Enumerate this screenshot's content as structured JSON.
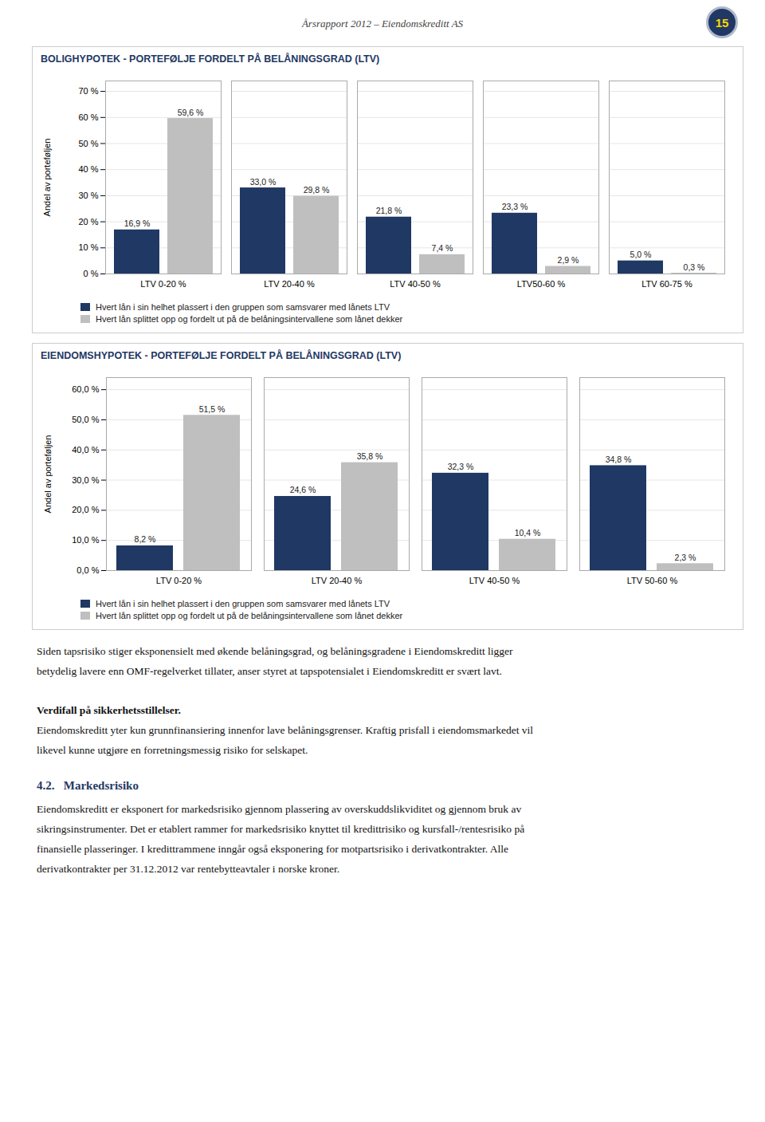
{
  "page_title": "Årsrapport 2012 – Eiendomskreditt AS",
  "page_number": "15",
  "chart_data": [
    {
      "type": "bar",
      "title": "BOLIGHYPOTEK - PORTEFØLJE FORDELT PÅ BELÅNINGSGRAD (LTV)",
      "categories": [
        "LTV 0-20 %",
        "LTV 20-40 %",
        "LTV 40-50 %",
        "LTV50-60 %",
        "LTV 60-75 %"
      ],
      "series": [
        {
          "name": "Hvert lån i sin helhet plassert i den gruppen som samsvarer med lånets LTV",
          "color": "#1F3864",
          "values": [
            16.9,
            33.0,
            21.8,
            23.3,
            5.0
          ],
          "value_labels": [
            "16,9 %",
            "33,0 %",
            "21,8 %",
            "23,3 %",
            "5,0 %"
          ]
        },
        {
          "name": "Hvert lån splittet opp og fordelt ut på de belåningsintervallene som lånet dekker",
          "color": "#BFBFBF",
          "values": [
            59.6,
            29.8,
            7.4,
            2.9,
            0.3
          ],
          "value_labels": [
            "59,6 %",
            "29,8 %",
            "7,4 %",
            "2,9 %",
            "0,3 %"
          ]
        }
      ],
      "ylabel": "Andel av porteføljen",
      "ylim": [
        0,
        74
      ],
      "yticks": [
        {
          "value": 0,
          "label": "0 %"
        },
        {
          "value": 10,
          "label": "10 %"
        },
        {
          "value": 20,
          "label": "20 %"
        },
        {
          "value": 30,
          "label": "30 %"
        },
        {
          "value": 40,
          "label": "40 %"
        },
        {
          "value": 50,
          "label": "50 %"
        },
        {
          "value": 60,
          "label": "60 %"
        },
        {
          "value": 70,
          "label": "70 %"
        }
      ],
      "grid": true,
      "data_labels": true
    },
    {
      "type": "bar",
      "title": "EIENDOMSHYPOTEK - PORTEFØLJE FORDELT PÅ BELÅNINGSGRAD (LTV)",
      "categories": [
        "LTV 0-20 %",
        "LTV 20-40 %",
        "LTV 40-50 %",
        "LTV 50-60 %"
      ],
      "series": [
        {
          "name": "Hvert lån i sin helhet plassert i den gruppen som samsvarer med lånets LTV",
          "color": "#1F3864",
          "values": [
            8.2,
            24.6,
            32.3,
            34.8
          ],
          "value_labels": [
            "8,2 %",
            "24,6 %",
            "32,3 %",
            "34,8 %"
          ]
        },
        {
          "name": "Hvert lån splittet opp og fordelt ut på de belåningsintervallene som lånet dekker",
          "color": "#BFBFBF",
          "values": [
            51.5,
            35.8,
            10.4,
            2.3
          ],
          "value_labels": [
            "51,5 %",
            "35,8 %",
            "10,4 %",
            "2,3 %"
          ]
        }
      ],
      "ylabel": "Andel av porteføljen",
      "ylim": [
        0,
        64
      ],
      "yticks": [
        {
          "value": 0.0,
          "label": "0,0 %"
        },
        {
          "value": 10.0,
          "label": "10,0 %"
        },
        {
          "value": 20.0,
          "label": "20,0 %"
        },
        {
          "value": 30.0,
          "label": "30,0 %"
        },
        {
          "value": 40.0,
          "label": "40,0 %"
        },
        {
          "value": 50.0,
          "label": "50,0 %"
        },
        {
          "value": 60.0,
          "label": "60,0 %"
        }
      ],
      "grid": true,
      "data_labels": true
    }
  ],
  "paragraphs": [
    {
      "lines": [
        "Siden tapsrisiko stiger eksponensielt med økende belåningsgrad, og belåningsgradene i Eiendomskreditt ligger",
        "betydelig lavere enn OMF-regelverket tillater, anser styret at tapspotensialet i Eiendomskreditt er svært lavt."
      ]
    },
    {
      "title": "Verdifall på sikkerhetsstillelser.",
      "lines": [
        "Eiendomskreditt yter kun grunnfinansiering innenfor lave belåningsgrenser. Kraftig prisfall i eiendomsmarkedet vil",
        "likevel kunne utgjøre en forretningsmessig risiko for selskapet."
      ]
    },
    {
      "heading": "4.2.   Markedsrisiko",
      "lines": [
        "Eiendomskreditt er eksponert for markedsrisiko gjennom plassering av overskuddslikviditet og gjennom bruk av",
        "sikringsinstrumenter. Det er etablert rammer for markedsrisiko knyttet til kredittrisiko og kursfall-/rentesrisiko på",
        "finansielle plasseringer. I kredittrammene inngår også eksponering for motpartsrisiko i derivatkontrakter. Alle",
        "derivatkontrakter per 31.12.2012 var rentebytteavtaler i norske kroner."
      ]
    }
  ]
}
